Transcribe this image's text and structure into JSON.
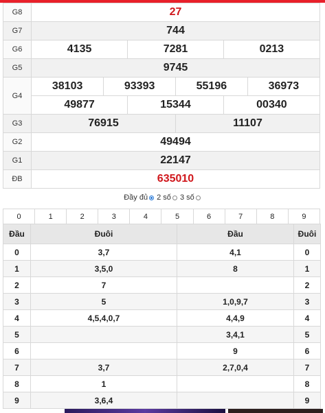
{
  "results": [
    {
      "label": "G8",
      "numbers": [
        "27"
      ]
    },
    {
      "label": "G7",
      "numbers": [
        "744"
      ]
    },
    {
      "label": "G6",
      "numbers": [
        "4135",
        "7281",
        "0213"
      ]
    },
    {
      "label": "G5",
      "numbers": [
        "9745"
      ]
    },
    {
      "label": "G4",
      "numbers_row1": [
        "38103",
        "93393",
        "55196",
        "36973"
      ],
      "numbers_row2": [
        "49877",
        "15344",
        "00340"
      ]
    },
    {
      "label": "G3",
      "numbers": [
        "76915",
        "11107"
      ]
    },
    {
      "label": "G2",
      "numbers": [
        "49494"
      ]
    },
    {
      "label": "G1",
      "numbers": [
        "22147"
      ]
    },
    {
      "label": "ĐB",
      "numbers": [
        "635010"
      ]
    }
  ],
  "options": {
    "full": "Đầy đủ",
    "two": "2 số",
    "three": "3 số",
    "selected": "two"
  },
  "digit_filter": [
    "0",
    "1",
    "2",
    "3",
    "4",
    "5",
    "6",
    "7",
    "8",
    "9"
  ],
  "head_tail": {
    "headers": [
      "Đầu",
      "Đuôi",
      "Đầu",
      "Đuôi"
    ],
    "rows": [
      {
        "dau": "0",
        "duoi": "3,7",
        "dau2": "4,1",
        "duoi2": "0"
      },
      {
        "dau": "1",
        "duoi": "3,5,0",
        "dau2": "8",
        "duoi2": "1"
      },
      {
        "dau": "2",
        "duoi": "7",
        "dau2": "",
        "duoi2": "2"
      },
      {
        "dau": "3",
        "duoi": "5",
        "dau2": "1,0,9,7",
        "duoi2": "3"
      },
      {
        "dau": "4",
        "duoi": "4,5,4,0,7",
        "dau2": "4,4,9",
        "duoi2": "4"
      },
      {
        "dau": "5",
        "duoi": "",
        "dau2": "3,4,1",
        "duoi2": "5"
      },
      {
        "dau": "6",
        "duoi": "",
        "dau2": "9",
        "duoi2": "6"
      },
      {
        "dau": "7",
        "duoi": "3,7",
        "dau2": "2,7,0,4",
        "duoi2": "7"
      },
      {
        "dau": "8",
        "duoi": "1",
        "dau2": "",
        "duoi2": "8"
      },
      {
        "dau": "9",
        "duoi": "3,6,4",
        "dau2": "",
        "duoi2": "9"
      }
    ]
  },
  "colors": {
    "accent": "#e8202a",
    "special": "#d0161b",
    "radio": "#1e73d6"
  }
}
